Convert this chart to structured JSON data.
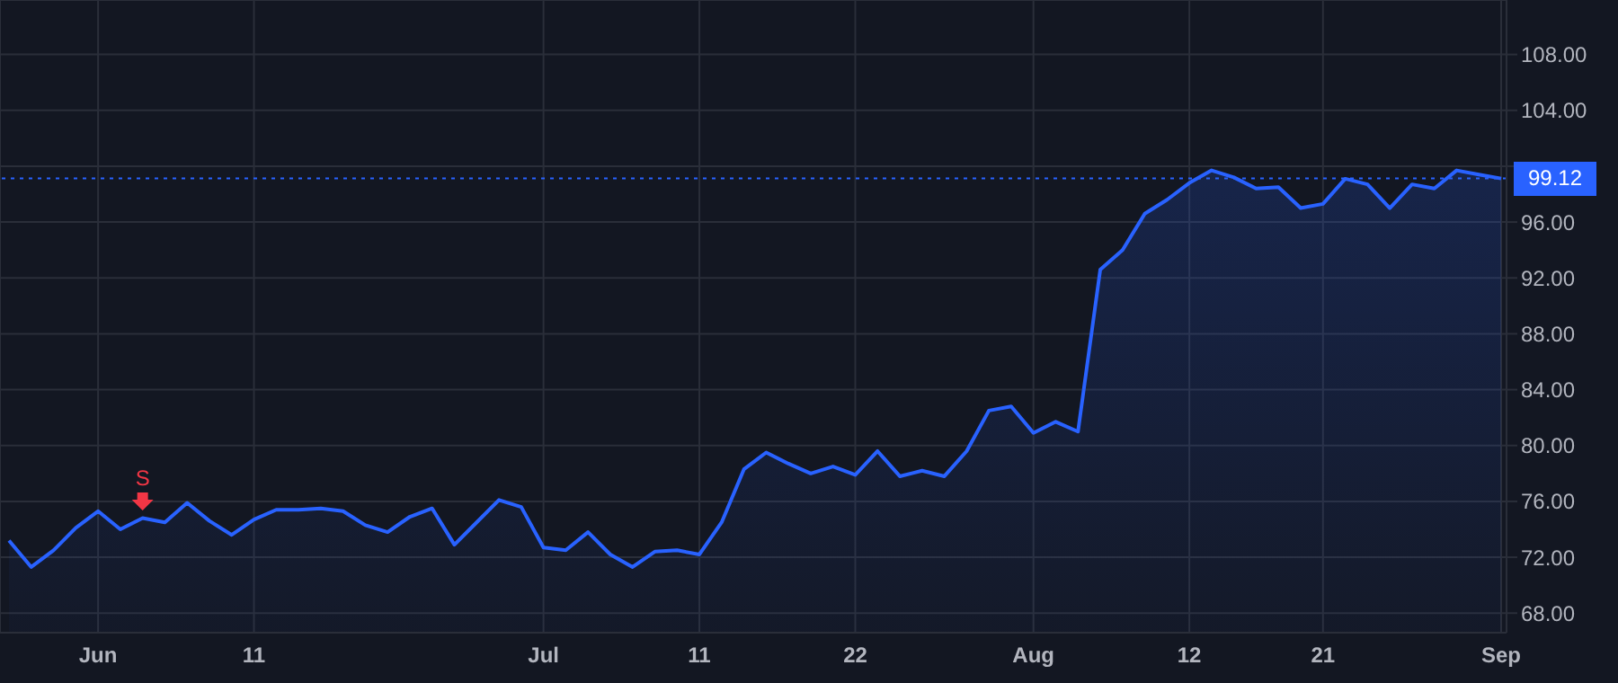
{
  "chart_data": {
    "type": "area",
    "categories": [
      null,
      null,
      null,
      null,
      "Jun",
      null,
      null,
      null,
      null,
      null,
      null,
      "11",
      null,
      null,
      null,
      null,
      null,
      null,
      null,
      null,
      null,
      null,
      null,
      null,
      "Jul",
      null,
      null,
      null,
      null,
      null,
      null,
      "11",
      null,
      null,
      null,
      null,
      null,
      null,
      "22",
      null,
      null,
      null,
      null,
      null,
      null,
      null,
      "Aug",
      null,
      null,
      null,
      null,
      null,
      null,
      "12",
      null,
      null,
      null,
      null,
      null,
      "21",
      null,
      null,
      null,
      null,
      null,
      null,
      null,
      "Sep"
    ],
    "series": [
      {
        "color": "#2962ff",
        "values": [
          73.2,
          71.3,
          72.5,
          74.1,
          75.3,
          74.0,
          74.8,
          74.5,
          75.9,
          74.6,
          73.6,
          74.7,
          75.4,
          75.4,
          75.5,
          75.3,
          74.3,
          73.8,
          74.9,
          75.5,
          72.9,
          74.5,
          76.1,
          75.6,
          72.7,
          72.5,
          73.8,
          72.2,
          71.3,
          72.4,
          72.5,
          72.2,
          74.5,
          78.3,
          79.5,
          78.7,
          78.0,
          78.5,
          77.9,
          79.6,
          77.8,
          78.2,
          77.8,
          79.6,
          82.5,
          82.8,
          80.9,
          81.7,
          81.0,
          92.6,
          94.0,
          96.6,
          97.6,
          98.8,
          99.7,
          99.2,
          98.4,
          98.5,
          97.0,
          97.3,
          99.1,
          98.7,
          97.0,
          98.7,
          98.4,
          99.7,
          99.4,
          99.12
        ]
      },
      {
        "name": "S",
        "type": "scatter",
        "color": "#f23645",
        "values": [
          null,
          null,
          null,
          null,
          null,
          null,
          76.0,
          null,
          null,
          null,
          null,
          null,
          null,
          null,
          null,
          null,
          null,
          null,
          null,
          null,
          null,
          null,
          null,
          null,
          null,
          null,
          null,
          null,
          null,
          null,
          null,
          null,
          null,
          null,
          null,
          null,
          null,
          null,
          null,
          null,
          null,
          null,
          null,
          null,
          null,
          null,
          null,
          null,
          null,
          null,
          null,
          null,
          null,
          null,
          null,
          null,
          null,
          null,
          null,
          null,
          null,
          null,
          null,
          null,
          null,
          null,
          null,
          null
        ]
      }
    ],
    "ylim": [
      66.6,
      111.9
    ],
    "yticks": [
      {
        "value": 68,
        "label": "68.00"
      },
      {
        "value": 72,
        "label": "72.00"
      },
      {
        "value": 76,
        "label": "76.00"
      },
      {
        "value": 80,
        "label": "80.00"
      },
      {
        "value": 84,
        "label": "84.00"
      },
      {
        "value": 88,
        "label": "88.00"
      },
      {
        "value": 92,
        "label": "92.00"
      },
      {
        "value": 96,
        "label": "96.00"
      },
      {
        "value": 100,
        "label": null
      },
      {
        "value": 104,
        "label": "104.00"
      },
      {
        "value": 108,
        "label": "108.00"
      }
    ],
    "ref_lines": [
      {
        "axis": "y",
        "value": 99.12,
        "label": "99.12",
        "color": "#2962ff",
        "line_style": "dotted"
      }
    ],
    "grid": true,
    "legend": false,
    "marker": "none",
    "line_style": "solid"
  }
}
